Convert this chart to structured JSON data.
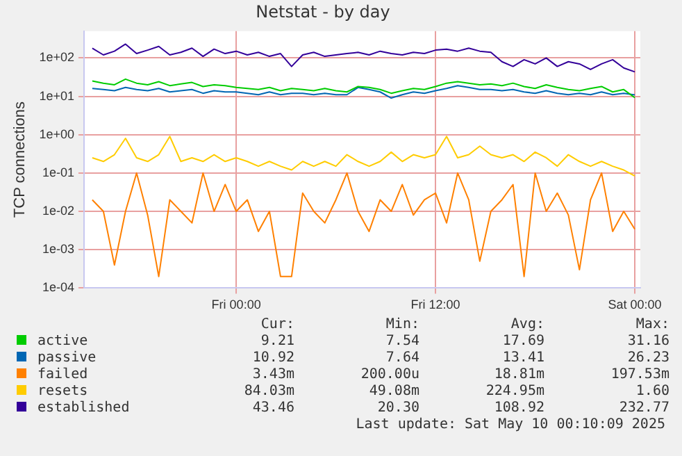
{
  "chart_data": {
    "type": "line",
    "title": "Netstat - by day",
    "ylabel": "TCP connections",
    "log": "y",
    "grid": true,
    "legend": "bottom",
    "marker": "none",
    "line_style": "solid",
    "x": [
      "2025-05-08T15:20",
      "2025-05-08T16:00",
      "2025-05-08T16:40",
      "2025-05-08T17:20",
      "2025-05-08T18:00",
      "2025-05-08T18:40",
      "2025-05-08T19:20",
      "2025-05-08T20:00",
      "2025-05-08T20:40",
      "2025-05-08T21:20",
      "2025-05-08T22:00",
      "2025-05-08T22:40",
      "2025-05-08T23:20",
      "2025-05-09T00:00",
      "2025-05-09T00:40",
      "2025-05-09T01:20",
      "2025-05-09T02:00",
      "2025-05-09T02:40",
      "2025-05-09T03:20",
      "2025-05-09T04:00",
      "2025-05-09T04:40",
      "2025-05-09T05:20",
      "2025-05-09T06:00",
      "2025-05-09T06:40",
      "2025-05-09T07:20",
      "2025-05-09T08:00",
      "2025-05-09T08:40",
      "2025-05-09T09:20",
      "2025-05-09T10:00",
      "2025-05-09T10:40",
      "2025-05-09T11:20",
      "2025-05-09T12:00",
      "2025-05-09T12:40",
      "2025-05-09T13:20",
      "2025-05-09T14:00",
      "2025-05-09T14:40",
      "2025-05-09T15:20",
      "2025-05-09T16:00",
      "2025-05-09T16:40",
      "2025-05-09T17:20",
      "2025-05-09T18:00",
      "2025-05-09T18:40",
      "2025-05-09T19:20",
      "2025-05-09T20:00",
      "2025-05-09T20:40",
      "2025-05-09T21:20",
      "2025-05-09T22:00",
      "2025-05-09T22:40",
      "2025-05-09T23:20",
      "2025-05-10T00:00"
    ],
    "xlim": [
      "2025-05-08T14:50",
      "2025-05-10T00:20"
    ],
    "xticks": [
      {
        "value": "2025-05-09T00:00",
        "label": "Fri 00:00"
      },
      {
        "value": "2025-05-09T12:00",
        "label": "Fri 12:00"
      },
      {
        "value": "2025-05-10T00:00",
        "label": "Sat 00:00"
      }
    ],
    "ylim": [
      0.0001,
      500
    ],
    "yticks": [
      {
        "value": 0.0001,
        "label": "1e-04"
      },
      {
        "value": 0.001,
        "label": "1e-03"
      },
      {
        "value": 0.01,
        "label": "1e-02"
      },
      {
        "value": 0.1,
        "label": "1e-01"
      },
      {
        "value": 1,
        "label": "1e+00"
      },
      {
        "value": 10,
        "label": "1e+01"
      },
      {
        "value": 100,
        "label": "1e+02"
      }
    ],
    "series": [
      {
        "name": "active",
        "color": "#00cc00",
        "values": [
          25,
          22,
          20,
          28,
          22,
          20,
          24,
          19,
          21,
          23,
          18,
          20,
          19,
          17,
          16,
          15,
          17,
          14,
          16,
          15,
          14,
          16,
          14,
          13,
          18,
          17,
          15,
          12,
          14,
          16,
          15,
          18,
          22,
          24,
          22,
          20,
          21,
          19,
          22,
          18,
          16,
          20,
          17,
          15,
          14,
          16,
          18,
          13,
          15,
          9.21
        ]
      },
      {
        "name": "passive",
        "color": "#0066b3",
        "values": [
          16,
          15,
          14,
          17,
          15,
          14,
          16,
          13,
          14,
          15,
          12,
          14,
          13,
          13,
          12,
          11,
          13,
          11,
          12,
          12,
          11,
          12,
          11,
          11,
          17,
          15,
          13,
          9,
          11,
          13,
          12,
          14,
          16,
          19,
          17,
          15,
          15,
          14,
          15,
          13,
          12,
          14,
          12,
          11,
          12,
          11,
          13,
          11,
          12,
          10.92
        ]
      },
      {
        "name": "failed",
        "color": "#ff8000",
        "values": [
          0.02,
          0.01,
          0.0004,
          0.01,
          0.1,
          0.008,
          0.0002,
          0.02,
          0.01,
          0.005,
          0.1,
          0.01,
          0.05,
          0.01,
          0.02,
          0.003,
          0.01,
          0.0002,
          0.0002,
          0.03,
          0.01,
          0.005,
          0.02,
          0.1,
          0.01,
          0.003,
          0.02,
          0.01,
          0.05,
          0.008,
          0.02,
          0.03,
          0.005,
          0.1,
          0.02,
          0.0005,
          0.01,
          0.02,
          0.05,
          0.0002,
          0.1,
          0.01,
          0.03,
          0.008,
          0.0003,
          0.02,
          0.1,
          0.003,
          0.01,
          0.00343
        ]
      },
      {
        "name": "resets",
        "color": "#ffcc00",
        "values": [
          0.25,
          0.2,
          0.3,
          0.8,
          0.25,
          0.2,
          0.3,
          0.9,
          0.2,
          0.25,
          0.2,
          0.3,
          0.2,
          0.25,
          0.2,
          0.15,
          0.2,
          0.15,
          0.12,
          0.2,
          0.15,
          0.2,
          0.15,
          0.3,
          0.2,
          0.15,
          0.2,
          0.35,
          0.2,
          0.3,
          0.25,
          0.3,
          0.9,
          0.25,
          0.3,
          0.5,
          0.3,
          0.25,
          0.3,
          0.2,
          0.35,
          0.25,
          0.15,
          0.3,
          0.2,
          0.15,
          0.2,
          0.15,
          0.12,
          0.084
        ]
      },
      {
        "name": "established",
        "color": "#330099",
        "values": [
          180,
          120,
          150,
          230,
          130,
          160,
          200,
          120,
          140,
          180,
          110,
          170,
          130,
          150,
          120,
          140,
          110,
          130,
          60,
          120,
          140,
          110,
          120,
          130,
          140,
          120,
          150,
          130,
          120,
          140,
          130,
          160,
          170,
          150,
          180,
          150,
          140,
          80,
          60,
          90,
          70,
          100,
          60,
          80,
          70,
          50,
          70,
          90,
          55,
          43.46
        ]
      }
    ],
    "annotations": [
      "Cur:",
      "Min:",
      "Avg:",
      "Max:",
      "9.21",
      "7.54",
      "17.69",
      "31.16",
      "10.92",
      "7.64",
      "13.41",
      "26.23",
      "3.43m",
      "200.00u",
      "18.81m",
      "197.53m",
      "84.03m",
      "49.08m",
      "224.95m",
      "1.60",
      "43.46",
      "20.30",
      "108.92",
      "232.77",
      "Last update: Sat May 10 00:10:09 2025"
    ]
  }
}
